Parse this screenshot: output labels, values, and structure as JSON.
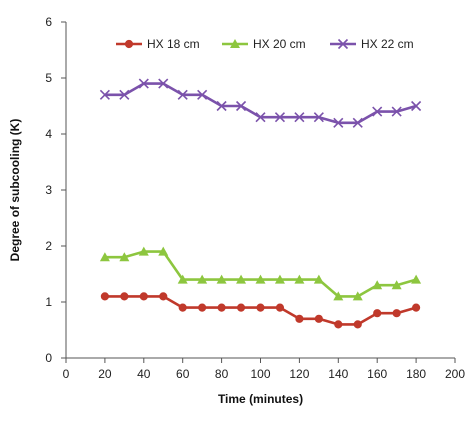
{
  "chart_data": {
    "type": "line",
    "xlabel": "Time (minutes)",
    "ylabel": "Degree of subcooling (K)",
    "xlim": [
      0,
      200
    ],
    "ylim": [
      0,
      6
    ],
    "xticks": [
      "0",
      "20",
      "40",
      "60",
      "80",
      "100",
      "120",
      "140",
      "160",
      "180",
      "200"
    ],
    "yticks": [
      "0",
      "1",
      "2",
      "3",
      "4",
      "5",
      "6"
    ],
    "grid": false,
    "legend_position": "top",
    "x": [
      20,
      30,
      40,
      50,
      60,
      70,
      80,
      90,
      100,
      110,
      120,
      130,
      140,
      150,
      160,
      170,
      180
    ],
    "series": [
      {
        "name": "HX 18 cm",
        "color": "#c0392b",
        "marker": "circle",
        "values": [
          1.1,
          1.1,
          1.1,
          1.1,
          0.9,
          0.9,
          0.9,
          0.9,
          0.9,
          0.9,
          0.7,
          0.7,
          0.6,
          0.6,
          0.8,
          0.8,
          0.9
        ]
      },
      {
        "name": "HX 20 cm",
        "color": "#8dc63f",
        "marker": "triangle",
        "values": [
          1.8,
          1.8,
          1.9,
          1.9,
          1.4,
          1.4,
          1.4,
          1.4,
          1.4,
          1.4,
          1.4,
          1.4,
          1.1,
          1.1,
          1.3,
          1.3,
          1.4
        ]
      },
      {
        "name": "HX 22 cm",
        "color": "#7b52ab",
        "marker": "x",
        "values": [
          4.7,
          4.7,
          4.9,
          4.9,
          4.7,
          4.7,
          4.5,
          4.5,
          4.3,
          4.3,
          4.3,
          4.3,
          4.2,
          4.2,
          4.4,
          4.4,
          4.5
        ]
      }
    ]
  }
}
